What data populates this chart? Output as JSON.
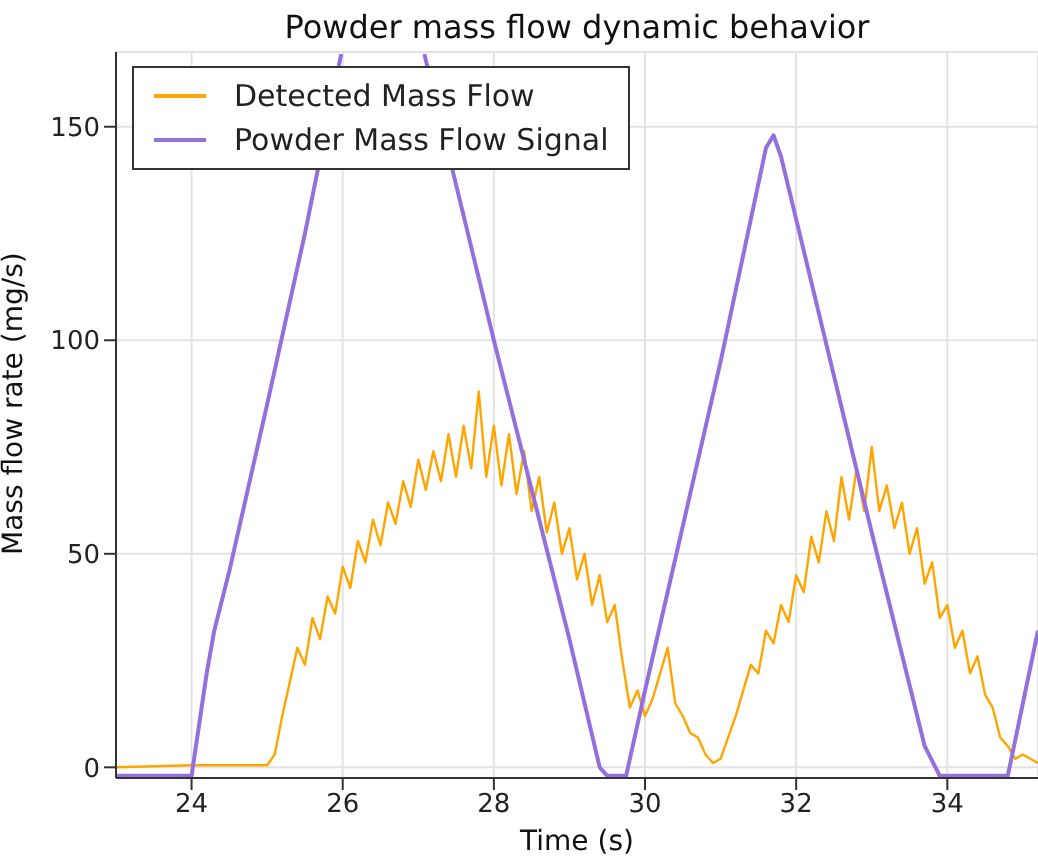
{
  "chart_data": {
    "type": "line",
    "title": "Powder mass flow dynamic behavior",
    "xlabel": "Time (s)",
    "ylabel": "Mass flow rate (mg/s)",
    "xlim": [
      23,
      35.2
    ],
    "ylim": [
      -2.5,
      167.5
    ],
    "xticks": [
      24,
      26,
      28,
      30,
      32,
      34
    ],
    "yticks": [
      0,
      50,
      100,
      150
    ],
    "grid": true,
    "legend": "top left",
    "marker": "none",
    "line_style": "solid",
    "series": [
      {
        "name": "Detected Mass Flow",
        "color": "#ffa500",
        "x": [
          23.0,
          24.0,
          25.0,
          25.1,
          25.2,
          25.3,
          25.4,
          25.5,
          25.6,
          25.7,
          25.8,
          25.9,
          26.0,
          26.1,
          26.2,
          26.3,
          26.4,
          26.5,
          26.6,
          26.7,
          26.8,
          26.9,
          27.0,
          27.1,
          27.2,
          27.3,
          27.4,
          27.5,
          27.6,
          27.7,
          27.8,
          27.9,
          28.0,
          28.1,
          28.2,
          28.3,
          28.4,
          28.5,
          28.6,
          28.7,
          28.8,
          28.9,
          29.0,
          29.1,
          29.2,
          29.3,
          29.4,
          29.5,
          29.6,
          29.7,
          29.8,
          29.9,
          30.0,
          30.1,
          30.2,
          30.3,
          30.4,
          30.5,
          30.6,
          30.7,
          30.8,
          30.9,
          31.0,
          31.1,
          31.2,
          31.3,
          31.4,
          31.5,
          31.6,
          31.7,
          31.8,
          31.9,
          32.0,
          32.1,
          32.2,
          32.3,
          32.4,
          32.5,
          32.6,
          32.7,
          32.8,
          32.9,
          33.0,
          33.1,
          33.2,
          33.3,
          33.4,
          33.5,
          33.6,
          33.7,
          33.8,
          33.9,
          34.0,
          34.1,
          34.2,
          34.3,
          34.4,
          34.5,
          34.6,
          34.7,
          34.8,
          34.9,
          35.0,
          35.2
        ],
        "values": [
          0,
          0.5,
          0.5,
          3,
          12,
          20,
          28,
          24,
          35,
          30,
          40,
          36,
          47,
          42,
          53,
          48,
          58,
          52,
          62,
          57,
          67,
          61,
          72,
          65,
          74,
          67,
          78,
          68,
          80,
          70,
          88,
          68,
          80,
          66,
          78,
          64,
          74,
          60,
          68,
          55,
          62,
          50,
          56,
          44,
          50,
          38,
          45,
          34,
          38,
          25,
          14,
          18,
          12,
          16,
          22,
          28,
          15,
          12,
          8,
          7,
          3,
          1,
          2,
          7,
          12,
          18,
          24,
          22,
          32,
          29,
          38,
          34,
          45,
          41,
          54,
          48,
          60,
          53,
          68,
          58,
          70,
          60,
          75,
          60,
          66,
          56,
          62,
          50,
          56,
          43,
          48,
          35,
          38,
          28,
          32,
          22,
          26,
          17,
          14,
          7,
          5,
          2,
          3,
          1
        ]
      },
      {
        "name": "Powder Mass Flow Signal",
        "color": "#9370db",
        "x": [
          23.0,
          24.0,
          24.1,
          24.2,
          24.3,
          24.5,
          25.0,
          25.5,
          25.98,
          26.5,
          27.08,
          28.0,
          29.0,
          29.4,
          29.5,
          29.75,
          30.0,
          31.0,
          31.6,
          31.7,
          31.8,
          33.0,
          33.7,
          33.9,
          34.8,
          35.0,
          35.2
        ],
        "values": [
          -2,
          -2,
          10,
          22,
          32,
          46,
          85,
          125,
          167,
          null,
          167,
          100,
          30,
          0,
          -2,
          -2,
          18,
          95,
          145,
          148,
          143,
          55,
          5,
          -2,
          -2,
          15,
          32
        ]
      }
    ]
  }
}
